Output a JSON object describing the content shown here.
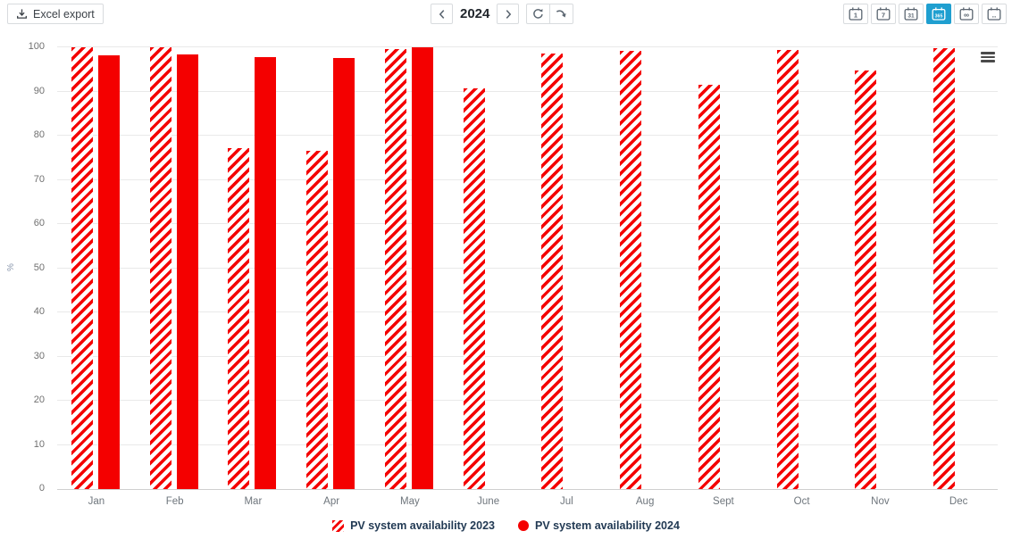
{
  "toolbar": {
    "excel_export_label": "Excel export",
    "year": "2024",
    "nav": {
      "prev": "chevron-left",
      "next": "chevron-right"
    },
    "view_buttons": [
      {
        "name": "day",
        "glyph": "1",
        "active": false
      },
      {
        "name": "week",
        "glyph": "7",
        "active": false
      },
      {
        "name": "month",
        "glyph": "31",
        "active": false
      },
      {
        "name": "year",
        "glyph": "365",
        "active": true
      },
      {
        "name": "lifetime",
        "glyph": "∞",
        "active": false
      },
      {
        "name": "custom",
        "glyph": "..",
        "active": false
      }
    ]
  },
  "chart_data": {
    "type": "bar",
    "categories": [
      "Jan",
      "Feb",
      "Mar",
      "Apr",
      "May",
      "June",
      "Jul",
      "Aug",
      "Sept",
      "Oct",
      "Nov",
      "Dec"
    ],
    "series": [
      {
        "name": "PV system availability 2023",
        "style": "hatched",
        "color": "#f40000",
        "values": [
          100,
          100,
          77.2,
          76.5,
          99.6,
          90.7,
          98.6,
          99.2,
          91.6,
          99.3,
          94.7,
          99.9
        ]
      },
      {
        "name": "PV system availability 2024",
        "style": "solid",
        "color": "#f40000",
        "values": [
          98.2,
          98.4,
          97.8,
          97.5,
          100,
          null,
          null,
          null,
          null,
          null,
          null,
          null
        ]
      }
    ],
    "xlabel": "",
    "ylabel": "%",
    "ylim": [
      0,
      100
    ],
    "ytick_step": 10,
    "grid": true,
    "legend_position": "bottom"
  },
  "colors": {
    "series_red": "#f40000",
    "active_view_bg": "#1f9fd0",
    "legend_text": "#223a54"
  }
}
